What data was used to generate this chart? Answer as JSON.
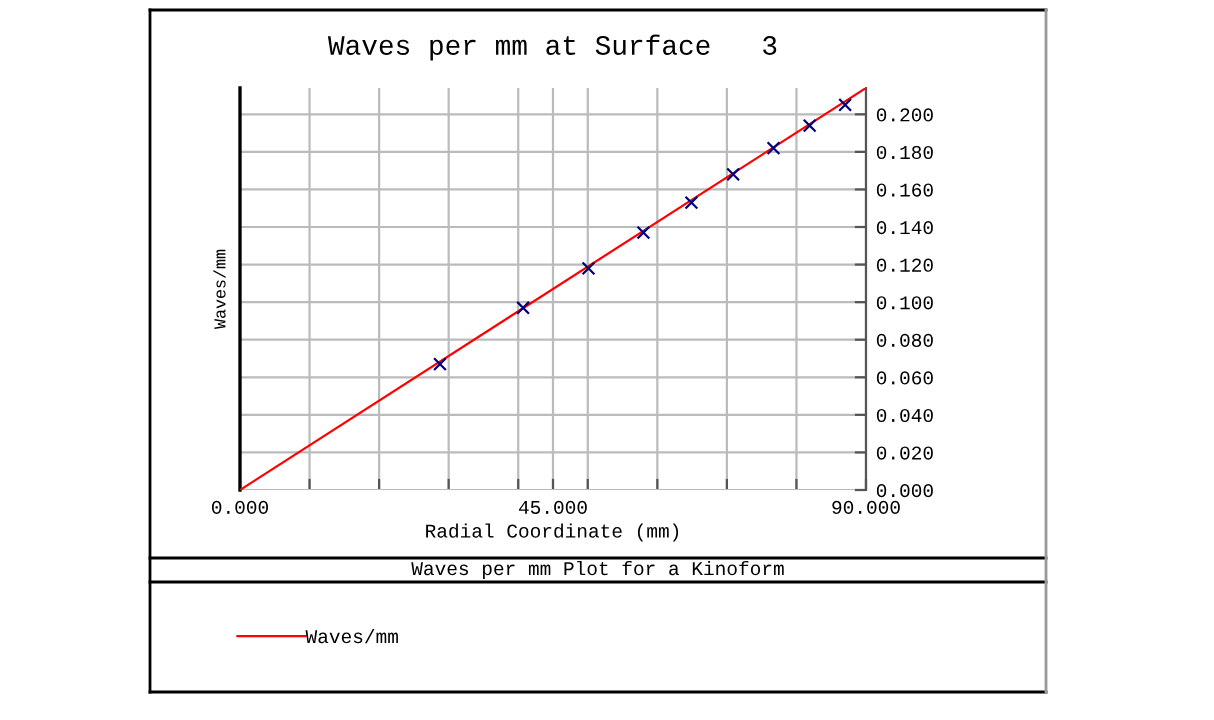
{
  "chart_data": {
    "type": "line",
    "title": "Waves per mm at Surface   3",
    "xlabel": "Radial Coordinate (mm)",
    "ylabel": "Waves/mm",
    "annotations": [
      "Waves per mm Plot for a Kinoform"
    ],
    "series": [
      {
        "name": "Waves/mm",
        "color": "#ff0000",
        "marker": "none",
        "x": [
          0,
          90
        ],
        "values": [
          0,
          0.214
        ]
      },
      {
        "type": "scatter",
        "color": "#000080",
        "marker": "cross",
        "x": [
          28.75,
          40.7,
          50.1,
          58.0,
          64.9,
          70.9,
          76.7,
          81.9,
          87.0
        ],
        "values": [
          0.067,
          0.097,
          0.118,
          0.137,
          0.153,
          0.168,
          0.182,
          0.194,
          0.205
        ]
      }
    ],
    "xlim": [
      0,
      90
    ],
    "ylim": [
      0,
      0.214
    ],
    "xticks": [
      {
        "value": 0,
        "label": "0.000"
      },
      {
        "value": 10,
        "label": null
      },
      {
        "value": 20,
        "label": null
      },
      {
        "value": 30,
        "label": null
      },
      {
        "value": 40,
        "label": null
      },
      {
        "value": 45,
        "label": "45.000"
      },
      {
        "value": 50,
        "label": null
      },
      {
        "value": 60,
        "label": null
      },
      {
        "value": 70,
        "label": null
      },
      {
        "value": 80,
        "label": null
      },
      {
        "value": 90,
        "label": "90.000"
      }
    ],
    "yticks": [
      {
        "value": 0,
        "label": "0.000"
      },
      {
        "value": 0.02,
        "label": "0.020"
      },
      {
        "value": 0.04,
        "label": "0.040"
      },
      {
        "value": 0.06,
        "label": "0.060"
      },
      {
        "value": 0.08,
        "label": "0.080"
      },
      {
        "value": 0.1,
        "label": "0.100"
      },
      {
        "value": 0.12,
        "label": "0.120"
      },
      {
        "value": 0.14,
        "label": "0.140"
      },
      {
        "value": 0.16,
        "label": "0.160"
      },
      {
        "value": 0.18,
        "label": "0.180"
      },
      {
        "value": 0.2,
        "label": "0.200"
      }
    ],
    "grid": true,
    "legend": "bottom left"
  }
}
